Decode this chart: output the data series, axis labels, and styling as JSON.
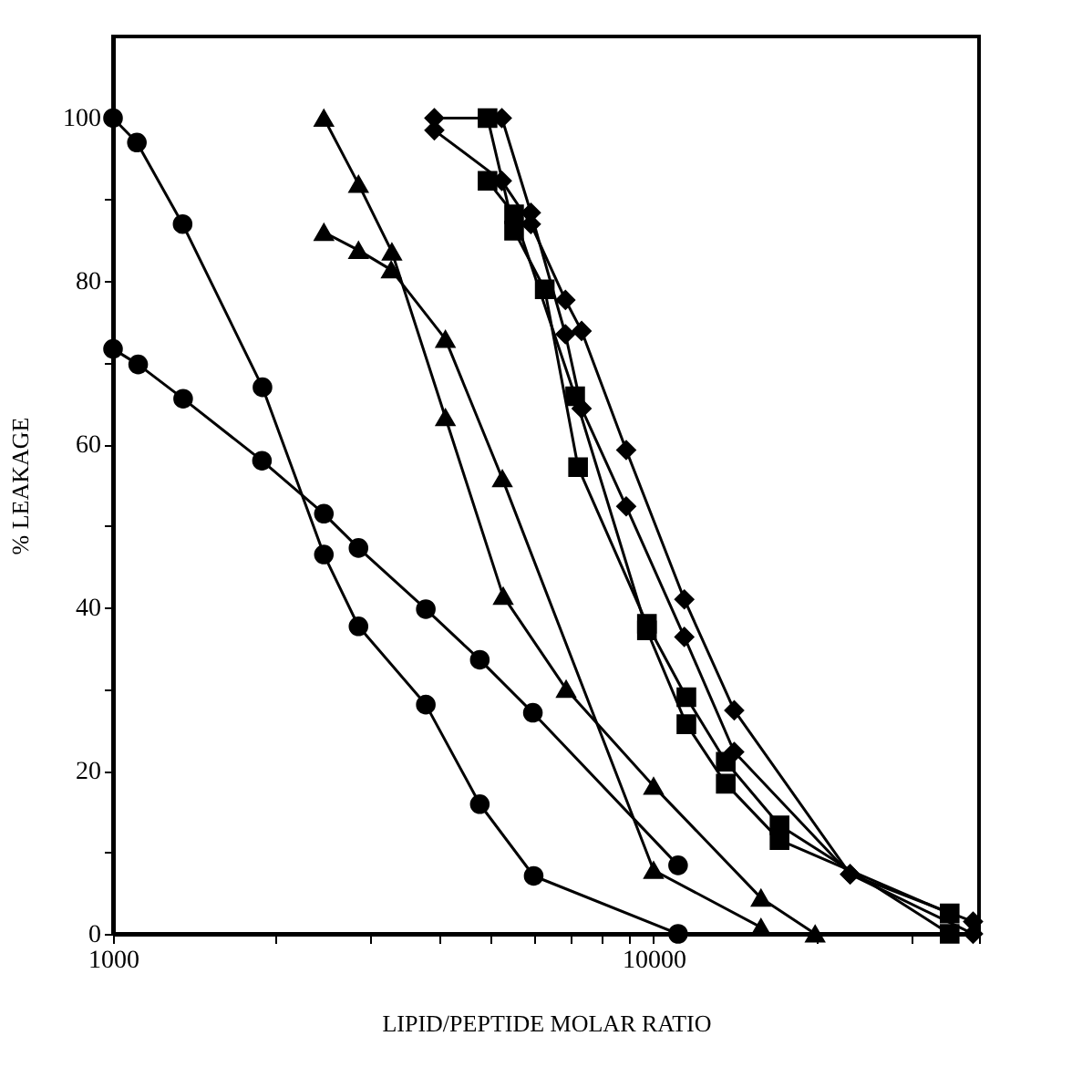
{
  "chart_data": {
    "type": "line",
    "xlabel": "LIPID/PEPTIDE MOLAR RATIO",
    "ylabel": "% LEAKAGE",
    "log": "x",
    "grid": false,
    "legend": false,
    "line_style": "solid",
    "xlim": [
      1000,
      40000
    ],
    "ylim": [
      0,
      110
    ],
    "xticks": [
      1000,
      {
        "value": 2000,
        "label": null
      },
      {
        "value": 3000,
        "label": null
      },
      {
        "value": 4000,
        "label": null
      },
      {
        "value": 5000,
        "label": null
      },
      {
        "value": 6000,
        "label": null
      },
      {
        "value": 7000,
        "label": null
      },
      {
        "value": 8000,
        "label": null
      },
      {
        "value": 9000,
        "label": null
      },
      10000,
      {
        "value": 20000,
        "label": null
      },
      {
        "value": 30000,
        "label": null
      },
      {
        "value": 40000,
        "label": null
      }
    ],
    "yticks": [
      0,
      {
        "value": 10,
        "label": null
      },
      20,
      {
        "value": 30,
        "label": null
      },
      40,
      {
        "value": 50,
        "label": null
      },
      60,
      {
        "value": 70,
        "label": null
      },
      80,
      {
        "value": 90,
        "label": null
      },
      100
    ],
    "series": [
      {
        "color": "#000000",
        "marker": "circle",
        "x": [
          1000,
          1107,
          1345,
          1890,
          2455,
          2845,
          3790,
          4770,
          6000,
          11100
        ],
        "values": [
          100,
          97,
          87,
          67,
          46.5,
          37.7,
          28.1,
          15.9,
          7.1,
          0
        ]
      },
      {
        "color": "#000000",
        "marker": "circle",
        "x": [
          1000,
          1113,
          1348,
          1886,
          2455,
          2845,
          3790,
          4770,
          5980,
          11100
        ],
        "values": [
          71.7,
          69.8,
          65.6,
          58,
          51.5,
          47.3,
          39.8,
          33.6,
          27.1,
          8.4
        ]
      },
      {
        "color": "#000000",
        "marker": "triangle",
        "x": [
          2455,
          2845,
          3280,
          4120,
          5270,
          6890,
          10000,
          15800,
          19900
        ],
        "values": [
          100,
          91.9,
          83.6,
          63.3,
          41.4,
          30,
          18.1,
          4.4,
          0
        ]
      },
      {
        "color": "#000000",
        "marker": "triangle",
        "x": [
          2455,
          2845,
          3270,
          4120,
          5250,
          10000,
          15800
        ],
        "values": [
          86,
          83.8,
          81.4,
          72.9,
          55.8,
          7.8,
          0.8
        ]
      },
      {
        "color": "#000000",
        "marker": "square",
        "x": [
          4930,
          5520,
          6290,
          7250,
          9720,
          11500,
          13600,
          17100,
          35300
        ],
        "values": [
          100,
          86.2,
          79,
          57.2,
          38,
          29,
          21.1,
          13.3,
          0
        ]
      },
      {
        "color": "#000000",
        "marker": "square",
        "x": [
          4930,
          5520,
          7160,
          9720,
          11500,
          13600,
          17100,
          35300
        ],
        "values": [
          92.3,
          88.2,
          65.9,
          37.2,
          25.7,
          18.4,
          11.5,
          2.5
        ]
      },
      {
        "color": "#000000",
        "marker": "diamond",
        "x": [
          3930,
          5240,
          5930,
          6870,
          7360,
          8900,
          11400,
          14100,
          23100,
          39000
        ],
        "values": [
          100,
          100,
          88.4,
          73.5,
          64.4,
          52.4,
          36.4,
          22.3,
          7.3,
          0
        ]
      },
      {
        "color": "#000000",
        "marker": "diamond",
        "x": [
          3930,
          5240,
          5930,
          6870,
          7360,
          8900,
          11400,
          14100,
          23100,
          39000
        ],
        "values": [
          98.5,
          92.3,
          87,
          77.7,
          73.9,
          59.3,
          41,
          27.4,
          7.3,
          1.5
        ]
      }
    ]
  }
}
